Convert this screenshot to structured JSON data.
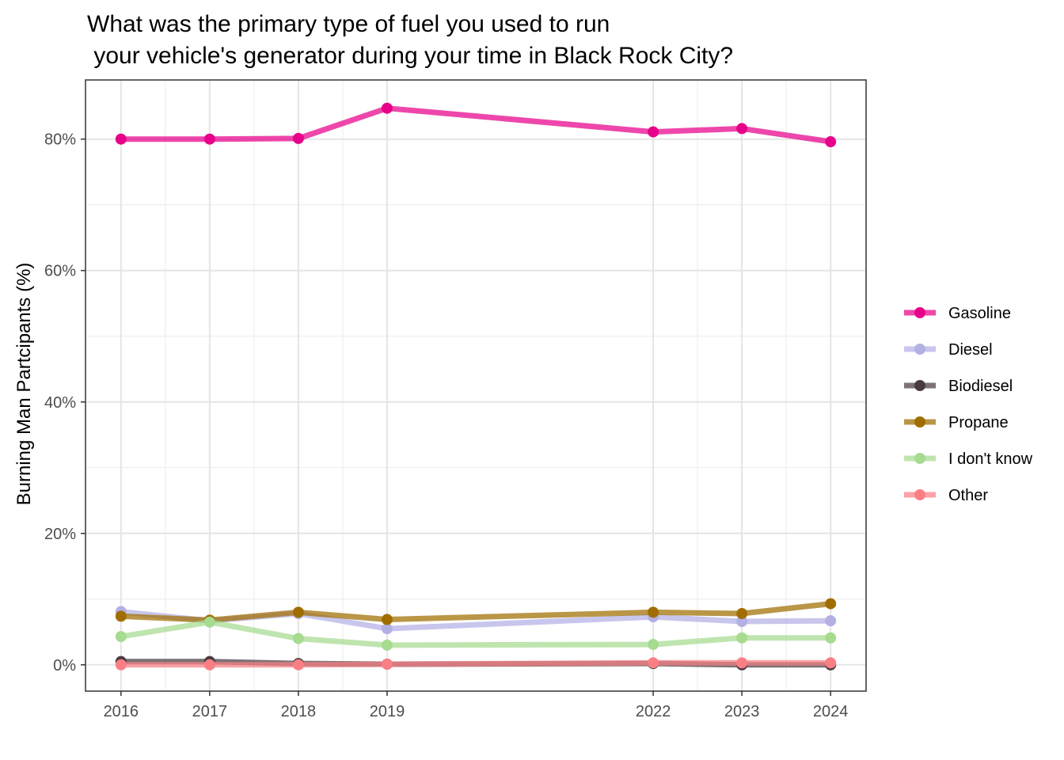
{
  "chart_data": {
    "type": "line",
    "title_lines": [
      "What was the primary type of fuel you used to run",
      " your vehicle's generator during your time in Black Rock City?"
    ],
    "xlabel": "",
    "ylabel": "Burning Man Partcipants (%)",
    "x": [
      2016,
      2017,
      2018,
      2019,
      2022,
      2023,
      2024
    ],
    "x_tick_labels": [
      "2016",
      "2017",
      "2018",
      "2019",
      "2022",
      "2023",
      "2024"
    ],
    "xlim": [
      2015.6,
      2024.4
    ],
    "ylim": [
      -4,
      89
    ],
    "y_ticks": [
      0,
      20,
      40,
      60,
      80
    ],
    "y_tick_labels": [
      "0%",
      "20%",
      "40%",
      "60%",
      "80%"
    ],
    "grid": true,
    "legend_position": "right",
    "series": [
      {
        "name": "Gasoline",
        "color": "#e7008a",
        "values": [
          80.0,
          80.0,
          80.1,
          84.7,
          81.1,
          81.6,
          79.6
        ]
      },
      {
        "name": "Diesel",
        "color": "#b3b0e4",
        "values": [
          8.1,
          6.7,
          7.8,
          5.5,
          7.3,
          6.6,
          6.7
        ]
      },
      {
        "name": "Biodiesel",
        "color": "#4a3b42",
        "values": [
          0.5,
          0.5,
          0.2,
          0.1,
          0.2,
          0.0,
          0.0
        ]
      },
      {
        "name": "Propane",
        "color": "#a06e00",
        "values": [
          7.4,
          6.8,
          8.0,
          6.9,
          8.0,
          7.8,
          9.3
        ]
      },
      {
        "name": "I don't know",
        "color": "#a6db90",
        "values": [
          4.3,
          6.5,
          4.0,
          3.0,
          3.1,
          4.1,
          4.1
        ]
      },
      {
        "name": "Other",
        "color": "#fa7f85",
        "values": [
          0.0,
          0.0,
          0.0,
          0.1,
          0.3,
          0.3,
          0.3
        ]
      }
    ]
  }
}
